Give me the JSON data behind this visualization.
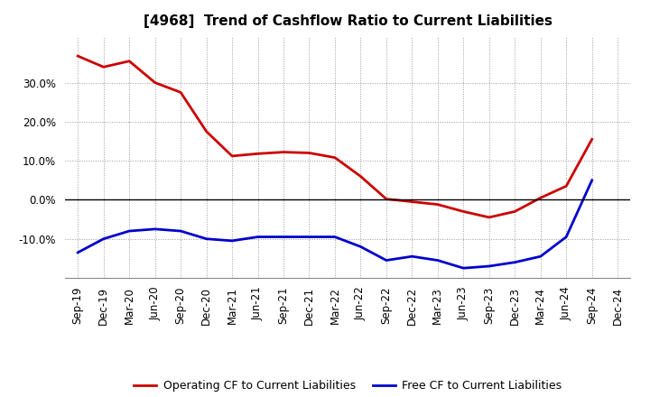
{
  "title": "[4968]  Trend of Cashflow Ratio to Current Liabilities",
  "x_labels": [
    "Sep-19",
    "Dec-19",
    "Mar-20",
    "Jun-20",
    "Sep-20",
    "Dec-20",
    "Mar-21",
    "Jun-21",
    "Sep-21",
    "Dec-21",
    "Mar-22",
    "Jun-22",
    "Sep-22",
    "Dec-22",
    "Mar-23",
    "Jun-23",
    "Sep-23",
    "Dec-23",
    "Mar-24",
    "Jun-24",
    "Sep-24",
    "Dec-24"
  ],
  "operating_cf": [
    0.368,
    0.34,
    0.355,
    0.3,
    0.275,
    0.175,
    0.112,
    0.118,
    0.122,
    0.12,
    0.108,
    0.06,
    0.002,
    -0.005,
    -0.012,
    -0.03,
    -0.045,
    -0.03,
    0.005,
    0.035,
    0.155,
    null
  ],
  "free_cf": [
    -0.135,
    -0.1,
    -0.08,
    -0.075,
    -0.08,
    -0.1,
    -0.105,
    -0.095,
    -0.095,
    -0.095,
    -0.095,
    -0.12,
    -0.155,
    -0.145,
    -0.155,
    -0.175,
    -0.17,
    -0.16,
    -0.145,
    -0.095,
    0.05,
    null
  ],
  "ylim": [
    -0.2,
    0.42
  ],
  "yticks": [
    -0.1,
    0.0,
    0.1,
    0.2,
    0.3
  ],
  "operating_color": "#cc0000",
  "free_color": "#0000cc",
  "background_color": "#ffffff",
  "grid_color": "#999999",
  "legend_op": "Operating CF to Current Liabilities",
  "legend_free": "Free CF to Current Liabilities",
  "title_fontsize": 11,
  "tick_fontsize": 8.5,
  "legend_fontsize": 9
}
